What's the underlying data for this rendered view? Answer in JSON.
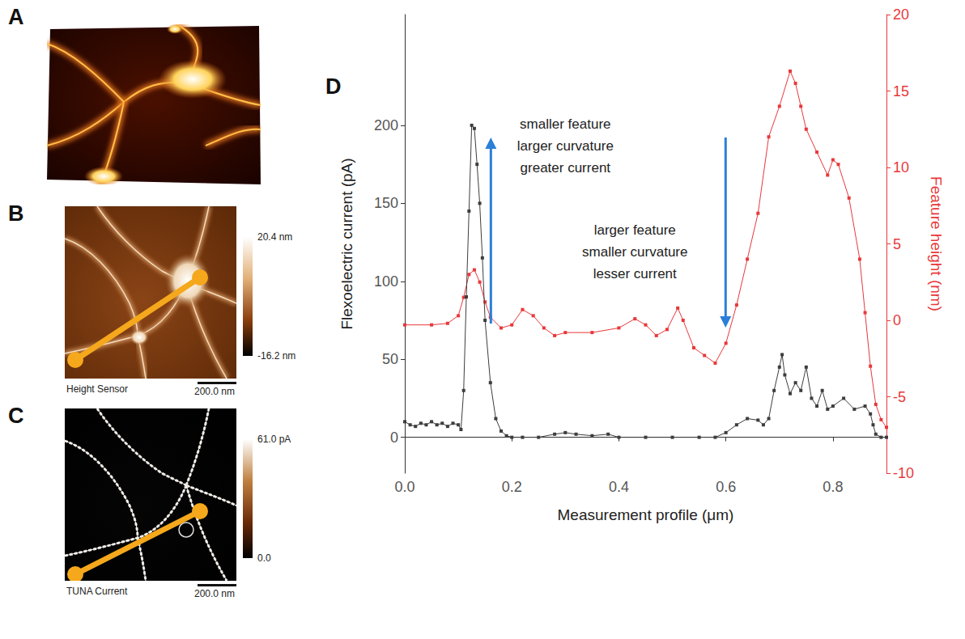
{
  "figure_panels": [
    {
      "label": "A"
    },
    {
      "label": "B",
      "caption": "Height Sensor",
      "scale_bar": "200.0 nm",
      "colorbar": {
        "range": [
          -16.2,
          20.4
        ],
        "ticks": [
          {
            "value": 20.4,
            "label": "20.4 nm"
          },
          {
            "value": -16.2,
            "label": "-16.2 nm"
          }
        ]
      }
    },
    {
      "label": "C",
      "caption": "TUNA Current",
      "scale_bar": "200.0 nm",
      "colorbar": {
        "range": [
          0,
          61.0
        ],
        "ticks": [
          {
            "value": 61.0,
            "label": "61.0 pA"
          },
          {
            "value": 0,
            "label": "0.0"
          }
        ]
      }
    }
  ],
  "chart_data": {
    "label": "D",
    "type": "line",
    "x_label": "Measurement profile (μm)",
    "y_label": "Flexoelectric current (pA)",
    "y2_label": "Feature height (nm)",
    "xlim": [
      0,
      0.9
    ],
    "xticks": [
      {
        "value": 0,
        "label": "0.0"
      },
      0.2,
      0.4,
      0.6,
      0.8
    ],
    "ylim": [
      -23,
      271
    ],
    "yticks": [
      0,
      50,
      100,
      150,
      200
    ],
    "y2lim": [
      -10,
      20
    ],
    "y2ticks": [
      -10,
      -5,
      0,
      5,
      10,
      15,
      20
    ],
    "grid": false,
    "marker": "square",
    "annotations": [
      {
        "lines": [
          "smaller feature",
          "larger curvature",
          "greater current"
        ],
        "x": 0.3,
        "y": 201
      },
      {
        "lines": [
          "larger feature",
          "smaller curvature",
          "lesser current"
        ],
        "x": 0.43,
        "y": 133
      }
    ],
    "series": [
      {
        "color": "#3d3d3d",
        "x": [
          0,
          0.01,
          0.02,
          0.03,
          0.04,
          0.05,
          0.06,
          0.07,
          0.08,
          0.09,
          0.1,
          0.105,
          0.11,
          0.115,
          0.12,
          0.125,
          0.13,
          0.135,
          0.14,
          0.145,
          0.15,
          0.16,
          0.17,
          0.18,
          0.19,
          0.2,
          0.22,
          0.25,
          0.28,
          0.3,
          0.32,
          0.35,
          0.38,
          0.4,
          0.45,
          0.5,
          0.55,
          0.58,
          0.6,
          0.62,
          0.64,
          0.66,
          0.67,
          0.68,
          0.69,
          0.7,
          0.705,
          0.71,
          0.72,
          0.73,
          0.74,
          0.75,
          0.76,
          0.77,
          0.78,
          0.79,
          0.8,
          0.82,
          0.84,
          0.86,
          0.87,
          0.875,
          0.88,
          0.89,
          0.9
        ],
        "values": [
          10,
          8,
          7,
          9,
          8,
          10,
          8,
          9,
          7,
          9,
          8,
          5,
          30,
          90,
          145,
          200,
          198,
          175,
          150,
          115,
          75,
          35,
          12,
          4,
          1,
          0,
          0,
          0,
          2,
          3,
          2,
          1,
          2,
          0,
          0,
          0,
          0,
          0,
          3,
          8,
          12,
          11,
          8,
          12,
          30,
          45,
          53,
          40,
          28,
          35,
          30,
          45,
          25,
          20,
          30,
          18,
          20,
          25,
          18,
          20,
          15,
          8,
          2,
          0,
          0
        ]
      },
      {
        "color": "#e8383b",
        "axis": "y2",
        "x": [
          0,
          0.05,
          0.08,
          0.1,
          0.11,
          0.12,
          0.13,
          0.14,
          0.15,
          0.16,
          0.18,
          0.2,
          0.22,
          0.24,
          0.26,
          0.28,
          0.3,
          0.35,
          0.4,
          0.43,
          0.45,
          0.47,
          0.49,
          0.51,
          0.52,
          0.54,
          0.56,
          0.58,
          0.6,
          0.62,
          0.64,
          0.66,
          0.68,
          0.7,
          0.72,
          0.73,
          0.74,
          0.75,
          0.77,
          0.79,
          0.8,
          0.81,
          0.83,
          0.85,
          0.86,
          0.87,
          0.88,
          0.89,
          0.9
        ],
        "values": [
          -0.3,
          -0.3,
          -0.2,
          0.3,
          1.5,
          3.0,
          3.3,
          2.5,
          1.2,
          0.2,
          -0.5,
          -0.3,
          0.7,
          0.3,
          -0.5,
          -1.0,
          -0.8,
          -0.8,
          -0.5,
          0.1,
          -0.3,
          -1.0,
          -0.6,
          0.8,
          0,
          -1.8,
          -2.3,
          -2.8,
          -1.5,
          1,
          4,
          7,
          12,
          14,
          16.3,
          15.5,
          14,
          12.5,
          11,
          9.5,
          10.5,
          10.2,
          8,
          4,
          0.5,
          -3,
          -5.5,
          -6.5,
          -7
        ]
      }
    ]
  }
}
